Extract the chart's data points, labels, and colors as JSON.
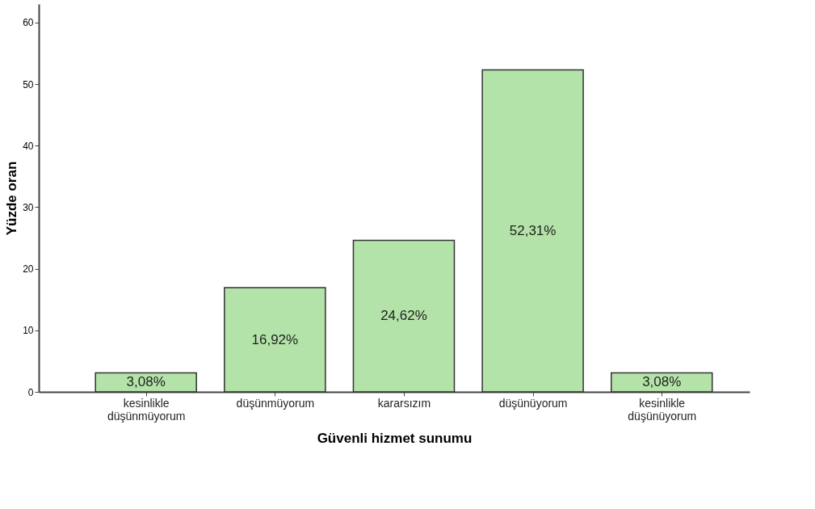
{
  "chart_data": {
    "type": "bar",
    "xlabel": "Güvenli hizmet sunumu",
    "ylabel": "Yüzde oran",
    "categories": [
      "kesinlikle düşünmüyorum",
      "düşünmüyorum",
      "kararsızım",
      "düşünüyorum",
      "kesinlikle düşünüyorum"
    ],
    "values": [
      3.08,
      16.92,
      24.62,
      52.31,
      3.08
    ],
    "value_labels": [
      "3,08%",
      "16,92%",
      "24,62%",
      "52,31%",
      "3,08%"
    ],
    "color": "#b3e3a8",
    "ylim": [
      0,
      63
    ],
    "yticks": [
      0,
      10,
      20,
      30,
      40,
      50,
      60
    ],
    "grid": false
  }
}
